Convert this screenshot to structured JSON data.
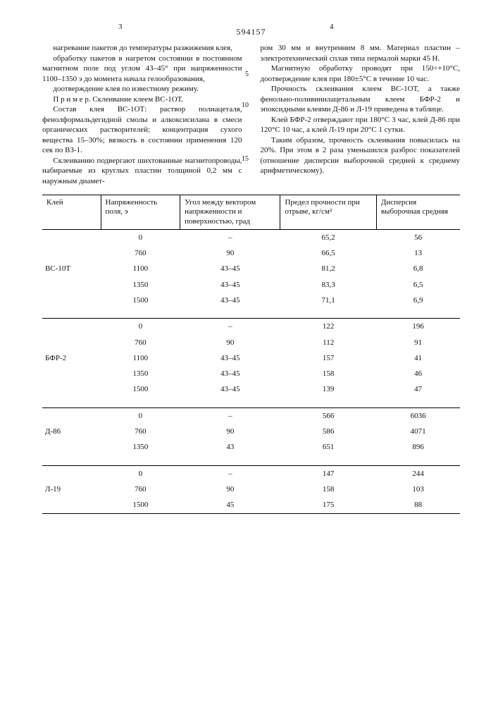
{
  "doc_number": "594157",
  "page_left_no": "3",
  "page_right_no": "4",
  "margin_5": "5",
  "margin_10": "10",
  "margin_15": "15",
  "left": {
    "p1": "нагревание пакетов до температуры разжижения клея,",
    "p2": "обработку пакетов в нагретом состоянии в постоянном магнитном поле под углом 43–45° при напряженности 1100–1350 э до момента начала гелообразования,",
    "p3": "доотверждение клея по известному режиму.",
    "p4": "П р и м е р. Склеивание клеем ВС-1ОТ.",
    "p5": "Состав клея ВС-1ОТ: раствор полиацеталя, фенолформальдегидной смолы и алкоксисилана в смеси органических растворителей; концентрация сухого вещества 15–30%; вязкость в состоянии применения 120 сек по ВЗ-1.",
    "p6": "Склеиванию подвергают шихтованные магнитопроводы, набираемые из круглых пластин толщиной 0,2 мм с наружным диамет-"
  },
  "right": {
    "p1": "ром 30 мм и внутренним 8 мм. Материал пластин – электротехнический сплав типа пермалой марки 45 Н.",
    "p2": "Магнитную обработку проводят при 150÷+10°С, доотверждение клея при 180±5°С в течение 10 час.",
    "p3": "Прочность склеивания клеем ВС-1ОТ, а также фенольно-поливинилацетальным клеем БФР-2 и эпоксидными клеями Д-86 и Л-19 приведена в таблице.",
    "p4": "Клей БФР-2 отверждают при 180°С 3 час, клей Д-86 при 120°С 10 час, а клей Л-19 при 20°С 1 сутки.",
    "p5": "Таким образом, прочность склеивания повысилась на 20%. При этом в 2 раза уменьшился разброс показателей (отношение дисперсии выборочной средней к среднему арифметическому)."
  },
  "table": {
    "col_widths": [
      "14%",
      "19%",
      "24%",
      "23%",
      "20%"
    ],
    "headers": [
      "Клей",
      "Напряженность поля, э",
      "Угол между вектором напряженности и поверхностью, град",
      "Предел прочности при отрыве, кг/см²",
      "Дисперсия выборочная средняя"
    ],
    "groups": [
      {
        "adhesive": "ВС-10Т",
        "rows": [
          {
            "field": "0",
            "angle": "–",
            "strength": "65,2",
            "disp": "56"
          },
          {
            "field": "760",
            "angle": "90",
            "strength": "66,5",
            "disp": "13"
          },
          {
            "field": "1100",
            "angle": "43–45",
            "strength": "81,2",
            "disp": "6,8"
          },
          {
            "field": "1350",
            "angle": "43–45",
            "strength": "83,3",
            "disp": "6,5"
          },
          {
            "field": "1500",
            "angle": "43–45",
            "strength": "71,1",
            "disp": "6,9"
          }
        ]
      },
      {
        "adhesive": "БФР-2",
        "rows": [
          {
            "field": "0",
            "angle": "–",
            "strength": "122",
            "disp": "196"
          },
          {
            "field": "760",
            "angle": "90",
            "strength": "112",
            "disp": "91"
          },
          {
            "field": "1100",
            "angle": "43–45",
            "strength": "157",
            "disp": "41"
          },
          {
            "field": "1350",
            "angle": "43–45",
            "strength": "158",
            "disp": "46"
          },
          {
            "field": "1500",
            "angle": "43–45",
            "strength": "139",
            "disp": "47"
          }
        ]
      },
      {
        "adhesive": "Д-86",
        "rows": [
          {
            "field": "0",
            "angle": "–",
            "strength": "566",
            "disp": "6036"
          },
          {
            "field": "760",
            "angle": "90",
            "strength": "586",
            "disp": "4071"
          },
          {
            "field": "1350",
            "angle": "43",
            "strength": "651",
            "disp": "896"
          }
        ]
      },
      {
        "adhesive": "Л-19",
        "rows": [
          {
            "field": "0",
            "angle": "–",
            "strength": "147",
            "disp": "244"
          },
          {
            "field": "760",
            "angle": "90",
            "strength": "158",
            "disp": "103"
          },
          {
            "field": "1500",
            "angle": "45",
            "strength": "175",
            "disp": "88"
          }
        ]
      }
    ]
  }
}
